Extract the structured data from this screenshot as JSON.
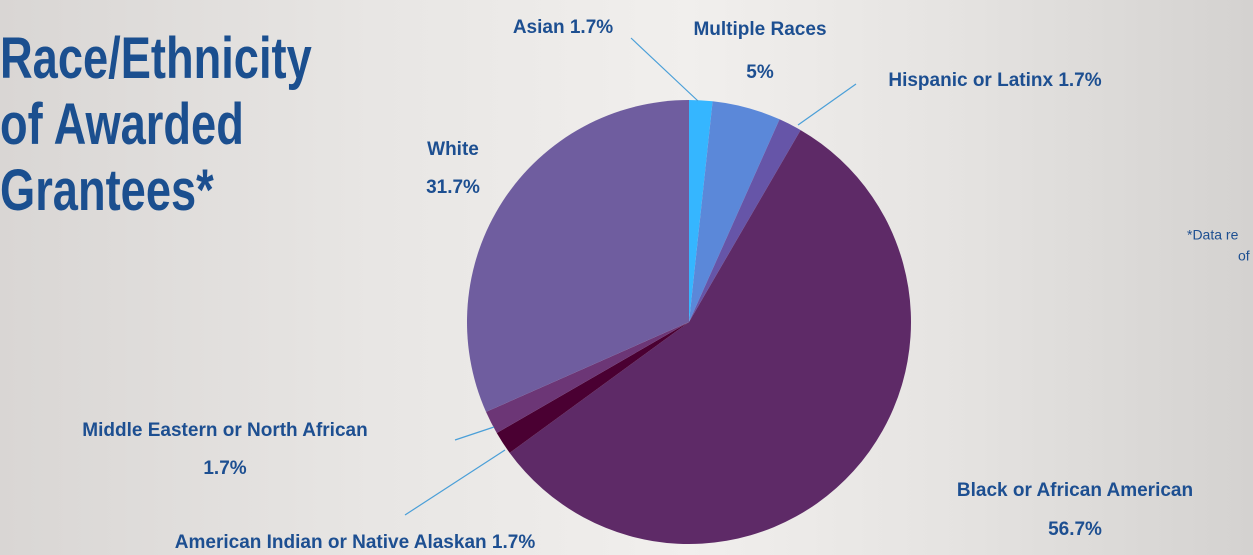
{
  "chart_data": {
    "type": "pie",
    "title": "Race/Ethnicity of Awarded Grantees*",
    "footnote": [
      "*Data re",
      "of"
    ],
    "categories": [
      "Asian",
      "Multiple Races",
      "Hispanic or Latinx",
      "Black or African American",
      "American Indian or Native Alaskan",
      "Middle Eastern or North African",
      "White"
    ],
    "values": [
      1.7,
      5,
      1.7,
      56.7,
      1.7,
      1.7,
      31.7
    ],
    "value_labels": [
      "1.7%",
      "5%",
      "1.7%",
      "56.7%",
      "1.7%",
      "1.7%",
      "31.7%"
    ],
    "colors": [
      "#35b6ff",
      "#5b88d9",
      "#6655a8",
      "#5e2a67",
      "#4a0032",
      "#6c3676",
      "#6f5d9f"
    ]
  }
}
